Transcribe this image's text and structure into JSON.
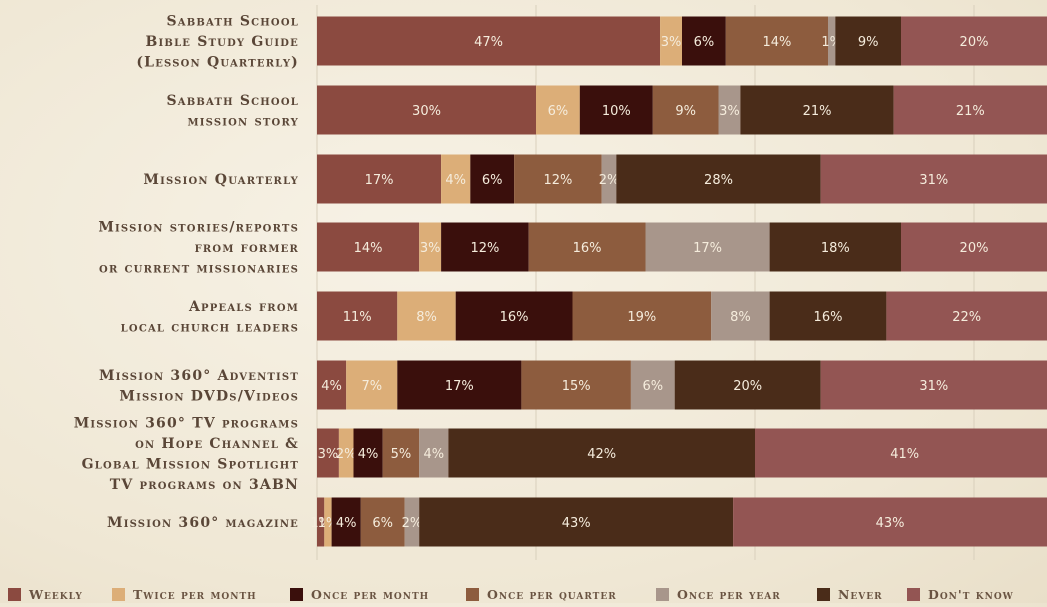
{
  "chart_data": {
    "type": "bar",
    "orientation": "horizontal",
    "stacked": true,
    "title": "",
    "xlabel": "",
    "ylabel": "",
    "xlim": [
      0,
      100
    ],
    "grid": true,
    "legend_position": "bottom",
    "categories": [
      [
        "Sabbath School",
        "Bible Study Guide",
        "(Lesson Quarterly)"
      ],
      [
        "Sabbath School",
        "mission story"
      ],
      [
        "Mission Quarterly"
      ],
      [
        "Mission stories/reports",
        "from former",
        "or current missionaries"
      ],
      [
        "Appeals from",
        "local church leaders"
      ],
      [
        "Mission 360° Adventist",
        "Mission DVDs/Videos"
      ],
      [
        "Mission 360° TV programs",
        "on Hope Channel &",
        "Global Mission Spotlight",
        "TV programs on 3ABN"
      ],
      [
        "Mission 360° magazine"
      ]
    ],
    "series": [
      {
        "name": "Weekly",
        "color": "#8b4a40",
        "values": [
          47,
          30,
          17,
          14,
          11,
          4,
          3,
          1
        ]
      },
      {
        "name": "Twice per month",
        "color": "#dcae78",
        "values": [
          3,
          6,
          4,
          3,
          8,
          7,
          2,
          1
        ]
      },
      {
        "name": "Once per month",
        "color": "#3a0f0c",
        "values": [
          6,
          10,
          6,
          12,
          16,
          17,
          4,
          4
        ]
      },
      {
        "name": "Once per quarter",
        "color": "#8d5c3e",
        "values": [
          14,
          9,
          12,
          16,
          19,
          15,
          5,
          6
        ]
      },
      {
        "name": "Once per year",
        "color": "#a8968b",
        "values": [
          1,
          3,
          2,
          17,
          8,
          6,
          4,
          2
        ]
      },
      {
        "name": "Never",
        "color": "#4a2c19",
        "values": [
          9,
          21,
          28,
          18,
          16,
          20,
          42,
          43
        ]
      },
      {
        "name": "Don't know",
        "color": "#935553",
        "values": [
          20,
          21,
          31,
          20,
          22,
          31,
          41,
          43
        ]
      }
    ],
    "labels": [
      [
        "47%",
        "3%",
        "6%",
        "14%",
        "1%",
        "9%",
        "20%"
      ],
      [
        "30%",
        "6%",
        "10%",
        "9%",
        "3%",
        "21%",
        "21%"
      ],
      [
        "17%",
        "4%",
        "6%",
        "12%",
        "2%",
        "28%",
        "31%"
      ],
      [
        "14%",
        "3%",
        "12%",
        "16%",
        "17%",
        "18%",
        "20%"
      ],
      [
        "11%",
        "8%",
        "16%",
        "19%",
        "8%",
        "16%",
        "22%"
      ],
      [
        "4%",
        "7%",
        "17%",
        "15%",
        "6%",
        "20%",
        "31%"
      ],
      [
        "3%",
        "2%",
        "4%",
        "5%",
        "4%",
        "42%",
        "41%"
      ],
      [
        "1%",
        "1%",
        "4%",
        "6%",
        "2%",
        "43%",
        "43%"
      ]
    ]
  }
}
